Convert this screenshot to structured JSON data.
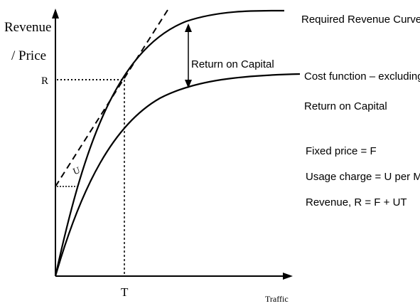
{
  "axes": {
    "y_label_line1": "Revenue",
    "y_label_line2": "/ Price",
    "x_label": "Traffic",
    "y_marker": "R",
    "x_marker": "T"
  },
  "curves": {
    "upper": "Required Revenue Curve",
    "lower_line1": "Cost function – excluding",
    "lower_line2": "Return on Capital",
    "gap": "Return on Capital",
    "slope": "U"
  },
  "notes": [
    "Fixed price = F",
    "Usage charge = U per Mbit",
    "Revenue, R = F + UT"
  ]
}
